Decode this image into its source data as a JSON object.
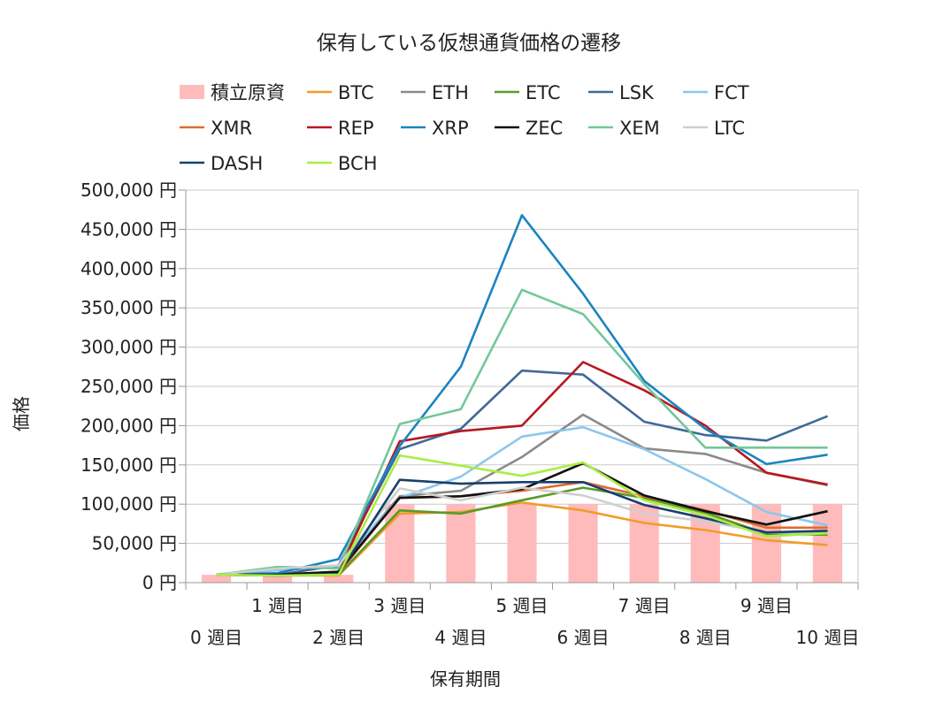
{
  "chart_data": {
    "type": "line",
    "title": "保有している仮想通貨価格の遷移",
    "xlabel": "保有期間",
    "ylabel": "価格",
    "ylim": [
      0,
      500000
    ],
    "y_ticks": [
      {
        "value": 0,
        "label": "0 円"
      },
      {
        "value": 50000,
        "label": "50,000 円"
      },
      {
        "value": 100000,
        "label": "100,000 円"
      },
      {
        "value": 150000,
        "label": "150,000 円"
      },
      {
        "value": 200000,
        "label": "200,000 円"
      },
      {
        "value": 250000,
        "label": "250,000 円"
      },
      {
        "value": 300000,
        "label": "300,000 円"
      },
      {
        "value": 350000,
        "label": "350,000 円"
      },
      {
        "value": 400000,
        "label": "400,000 円"
      },
      {
        "value": 450000,
        "label": "450,000 円"
      },
      {
        "value": 500000,
        "label": "500,000 円"
      }
    ],
    "categories": [
      "0 週目",
      "1 週目",
      "2 週目",
      "3 週目",
      "4 週目",
      "5 週目",
      "6 週目",
      "7 週目",
      "8 週目",
      "9 週目",
      "10 週目"
    ],
    "grid": true,
    "legend_position": "top",
    "bar_series": {
      "name": "積立原資",
      "color": "#ffbbbb",
      "values": [
        10000,
        10000,
        10000,
        100000,
        100000,
        100000,
        100000,
        100000,
        100000,
        100000,
        100000
      ]
    },
    "series": [
      {
        "name": "BTC",
        "color": "#f29b2a",
        "values": [
          10000,
          9000,
          9000,
          88000,
          90000,
          102000,
          92000,
          76000,
          67000,
          54000,
          48000
        ]
      },
      {
        "name": "ETH",
        "color": "#8a8a8a",
        "values": [
          10000,
          16000,
          20000,
          110000,
          117000,
          160000,
          214000,
          171000,
          164000,
          140000,
          124000
        ]
      },
      {
        "name": "ETC",
        "color": "#5a9a2a",
        "values": [
          10000,
          9000,
          10000,
          92000,
          88000,
          105000,
          121000,
          108000,
          89000,
          62000,
          61000
        ]
      },
      {
        "name": "LSK",
        "color": "#3f6a98",
        "values": [
          10000,
          10000,
          22000,
          170000,
          196000,
          270000,
          265000,
          205000,
          188000,
          181000,
          212000
        ]
      },
      {
        "name": "FCT",
        "color": "#8cc7ec",
        "values": [
          10000,
          16000,
          22000,
          108000,
          135000,
          186000,
          198000,
          170000,
          132000,
          90000,
          73000
        ]
      },
      {
        "name": "XMR",
        "color": "#e06a32",
        "values": [
          10000,
          10000,
          12000,
          108000,
          110000,
          117000,
          128000,
          110000,
          92000,
          70000,
          70000
        ]
      },
      {
        "name": "REP",
        "color": "#b8171f",
        "values": [
          10000,
          10000,
          14000,
          180000,
          193000,
          200000,
          281000,
          245000,
          200000,
          140000,
          125000
        ]
      },
      {
        "name": "XRP",
        "color": "#1a84c0",
        "values": [
          10000,
          12000,
          30000,
          174000,
          275000,
          468000,
          368000,
          257000,
          196000,
          151000,
          163000
        ]
      },
      {
        "name": "ZEC",
        "color": "#111111",
        "values": [
          10000,
          10000,
          14000,
          108000,
          110000,
          119000,
          152000,
          111000,
          91000,
          74000,
          91000
        ]
      },
      {
        "name": "XEM",
        "color": "#73c79a",
        "values": [
          10000,
          20000,
          18000,
          202000,
          221000,
          373000,
          342000,
          253000,
          172000,
          172000,
          172000
        ]
      },
      {
        "name": "LTC",
        "color": "#cfcfcf",
        "values": [
          10000,
          18000,
          22000,
          120000,
          105000,
          121000,
          111000,
          88000,
          78000,
          64000,
          63000
        ]
      },
      {
        "name": "DASH",
        "color": "#173f6e",
        "values": [
          10000,
          9000,
          11000,
          131000,
          126000,
          128000,
          128000,
          99000,
          82000,
          64000,
          66000
        ]
      },
      {
        "name": "BCH",
        "color": "#a8ee45",
        "values": [
          10000,
          9000,
          10000,
          162000,
          149000,
          136000,
          153000,
          105000,
          86000,
          59000,
          63000
        ]
      }
    ]
  }
}
